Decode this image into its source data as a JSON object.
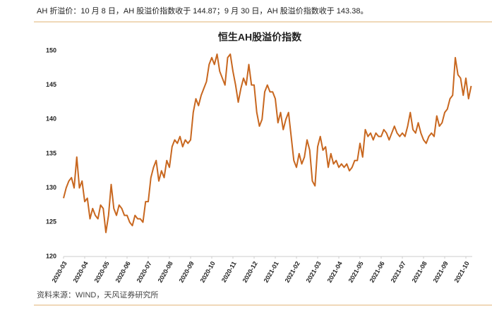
{
  "chart_data": {
    "type": "line",
    "note": "AH 折溢价：10 月 8 日，AH 股溢价指数收于 144.87；9 月 30 日，AH 股溢价指数收于 143.38。",
    "title": "恒生AH股溢价指数",
    "source": "资料来源：WIND，天风证券研究所",
    "xlim": [
      0,
      19.3
    ],
    "xticks": [
      {
        "value": 0,
        "label": "2020-03"
      },
      {
        "value": 1,
        "label": "2020-04"
      },
      {
        "value": 2,
        "label": "2020-05"
      },
      {
        "value": 3,
        "label": "2020-06"
      },
      {
        "value": 4,
        "label": "2020-07"
      },
      {
        "value": 5,
        "label": "2020-08"
      },
      {
        "value": 6,
        "label": "2020-09"
      },
      {
        "value": 7,
        "label": "2020-10"
      },
      {
        "value": 8,
        "label": "2020-11"
      },
      {
        "value": 9,
        "label": "2020-12"
      },
      {
        "value": 10,
        "label": "2021-01"
      },
      {
        "value": 11,
        "label": "2021-02"
      },
      {
        "value": 12,
        "label": "2021-03"
      },
      {
        "value": 13,
        "label": "2021-04"
      },
      {
        "value": 14,
        "label": "2021-05"
      },
      {
        "value": 15,
        "label": "2021-06"
      },
      {
        "value": 16,
        "label": "2021-07"
      },
      {
        "value": 17,
        "label": "2021-08"
      },
      {
        "value": 18,
        "label": "2021-09"
      },
      {
        "value": 19,
        "label": "2021-10"
      }
    ],
    "ylim": [
      120,
      150
    ],
    "yticks": [
      120,
      125,
      130,
      135,
      140,
      145,
      150
    ],
    "grid": false,
    "x": [
      0,
      0.125,
      0.25,
      0.375,
      0.5,
      0.625,
      0.75,
      0.875,
      1,
      1.125,
      1.25,
      1.375,
      1.5,
      1.625,
      1.75,
      1.875,
      2,
      2.125,
      2.25,
      2.375,
      2.5,
      2.625,
      2.75,
      2.875,
      3,
      3.125,
      3.25,
      3.375,
      3.5,
      3.625,
      3.75,
      3.875,
      4,
      4.125,
      4.25,
      4.375,
      4.5,
      4.625,
      4.75,
      4.875,
      5,
      5.125,
      5.25,
      5.375,
      5.5,
      5.625,
      5.75,
      5.875,
      6,
      6.125,
      6.25,
      6.375,
      6.5,
      6.625,
      6.75,
      6.875,
      7,
      7.125,
      7.25,
      7.375,
      7.5,
      7.625,
      7.75,
      7.875,
      8,
      8.125,
      8.25,
      8.375,
      8.5,
      8.625,
      8.75,
      8.875,
      9,
      9.125,
      9.25,
      9.375,
      9.5,
      9.625,
      9.75,
      9.875,
      10,
      10.125,
      10.25,
      10.375,
      10.5,
      10.625,
      10.75,
      10.875,
      11,
      11.125,
      11.25,
      11.375,
      11.5,
      11.625,
      11.75,
      11.875,
      12,
      12.125,
      12.25,
      12.375,
      12.5,
      12.625,
      12.75,
      12.875,
      13,
      13.125,
      13.25,
      13.375,
      13.5,
      13.625,
      13.75,
      13.875,
      14,
      14.125,
      14.25,
      14.375,
      14.5,
      14.625,
      14.75,
      14.875,
      15,
      15.125,
      15.25,
      15.375,
      15.5,
      15.625,
      15.75,
      15.875,
      16,
      16.125,
      16.25,
      16.375,
      16.5,
      16.625,
      16.75,
      16.875,
      17,
      17.125,
      17.25,
      17.375,
      17.5,
      17.625,
      17.75,
      17.875,
      18,
      18.125,
      18.25,
      18.375,
      18.5,
      18.625,
      18.75,
      18.875,
      19,
      19.125,
      19.25
    ],
    "series": [
      {
        "color": "#c8671f",
        "values": [
          128.5,
          130,
          131,
          131.5,
          130,
          134.5,
          130,
          131,
          128,
          128.5,
          125.5,
          127,
          126,
          125.5,
          127.5,
          127,
          123.5,
          126,
          130.5,
          127,
          126,
          127.5,
          127,
          126,
          126,
          125,
          124.5,
          126,
          125.5,
          125.5,
          125,
          128,
          128,
          131.5,
          133,
          134,
          131,
          132.5,
          131.5,
          134,
          133,
          136,
          137,
          136.5,
          137.5,
          136,
          137,
          136.5,
          137,
          141,
          143,
          142,
          143.5,
          144.5,
          145.5,
          148,
          149,
          148,
          149.5,
          147,
          146,
          145,
          149,
          149.5,
          147,
          145,
          142.5,
          144.5,
          146,
          145,
          148,
          145,
          145,
          141,
          139,
          140,
          144,
          145,
          144,
          144,
          143,
          139.5,
          141,
          138.5,
          140,
          141,
          137.5,
          134,
          133,
          135,
          133.5,
          134.5,
          137,
          135.5,
          131,
          130.3,
          136,
          137.5,
          135.5,
          136,
          133,
          135,
          133.5,
          134,
          133,
          133.5,
          133,
          133.5,
          132.5,
          133,
          134,
          134,
          136.5,
          134.5,
          138.5,
          137.5,
          138,
          137,
          138,
          137.5,
          137.5,
          138.5,
          138,
          137,
          138,
          139,
          138,
          137.5,
          138,
          137.5,
          139,
          141,
          138.5,
          138,
          139.5,
          138,
          137,
          136.5,
          137.5,
          138,
          137.5,
          140.5,
          139,
          139.5,
          141,
          141.5,
          143,
          143.5,
          149,
          146.5,
          146,
          143.5,
          146,
          143,
          144.87
        ]
      }
    ]
  }
}
